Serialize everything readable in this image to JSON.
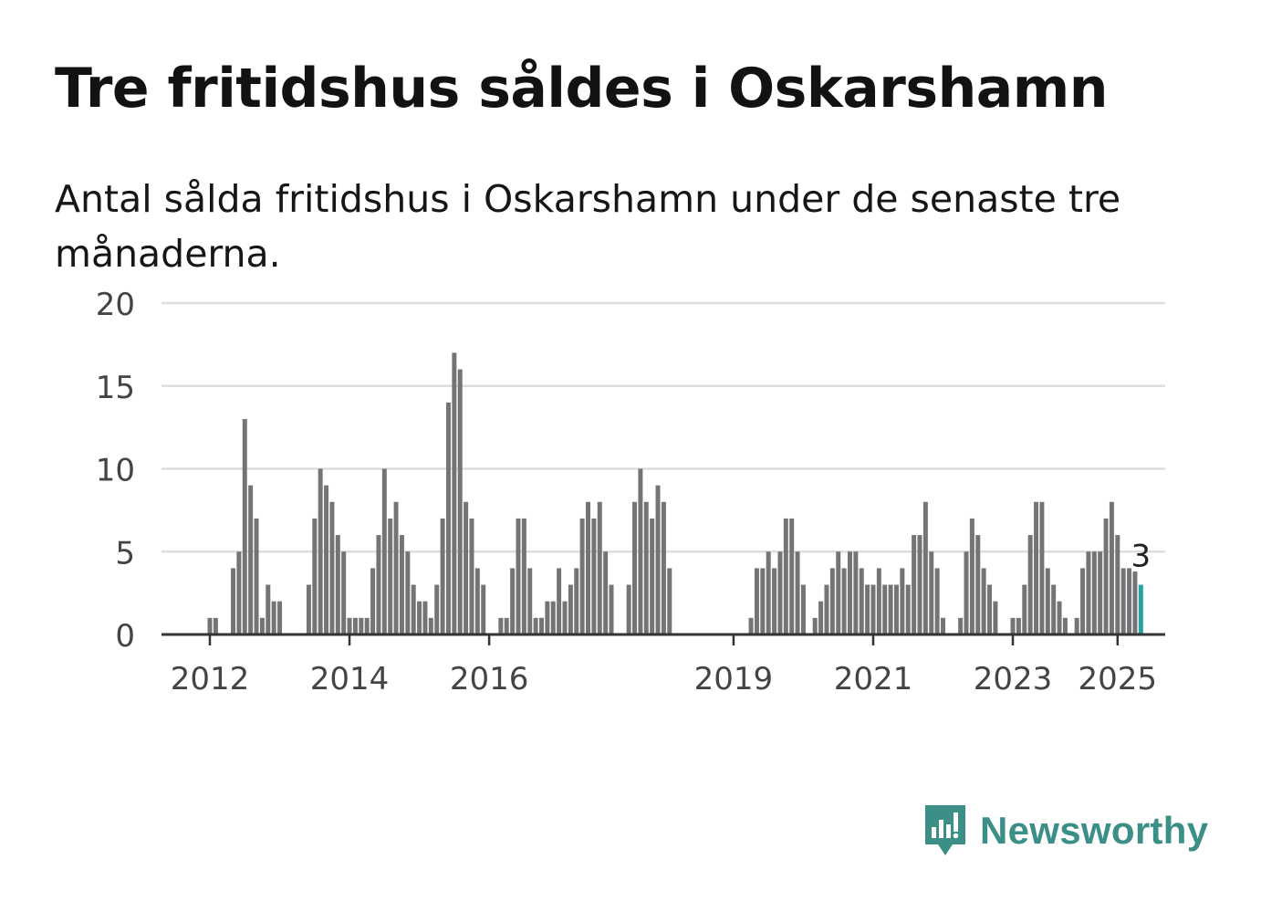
{
  "title": "Tre fritidshus såldes i Oskarshamn",
  "subtitle": "Antal sålda fritidshus i Oskarshamn under de senaste tre månaderna.",
  "brand": {
    "name": "Newsworthy",
    "icon": "newsworthy-logo-icon",
    "color": "#3c8f86"
  },
  "colors": {
    "bar": "#747376",
    "highlight": "#24a3a3",
    "grid": "#dddddd",
    "axis": "#333333"
  },
  "chart_data": {
    "type": "bar",
    "ylim": [
      0,
      20
    ],
    "yticks": [
      "0",
      "5",
      "10",
      "15",
      "20"
    ],
    "xticks": [
      {
        "label": "2012",
        "month": "2012-01"
      },
      {
        "label": "2014",
        "month": "2014-01"
      },
      {
        "label": "2016",
        "month": "2016-01"
      },
      {
        "label": "2019",
        "month": "2019-07"
      },
      {
        "label": "2021",
        "month": "2021-07"
      },
      {
        "label": "2023",
        "month": "2023-07"
      },
      {
        "label": "2025",
        "month": "2025-01"
      }
    ],
    "highlight_label": "3",
    "series": [
      {
        "segments": [
          {
            "start": "2012-01",
            "values": [
              1,
              1,
              0,
              0,
              4,
              5,
              13,
              9,
              7,
              1,
              3,
              2,
              2
            ]
          },
          {
            "start": "2013-06",
            "values": [
              3,
              7,
              10,
              9,
              8,
              6,
              5,
              1,
              1,
              1,
              1,
              4,
              6,
              10,
              7,
              8,
              6,
              5,
              3,
              2,
              2,
              1,
              3,
              7,
              14,
              17,
              16,
              8,
              7,
              4,
              3
            ]
          },
          {
            "start": "2016-03",
            "values": [
              1,
              1,
              4,
              7,
              7,
              4,
              1,
              1,
              2,
              2,
              4,
              2,
              3,
              4,
              7,
              8,
              7,
              8,
              5,
              3
            ]
          },
          {
            "start": "2018-01",
            "values": [
              3,
              8,
              10,
              8,
              7,
              9,
              8,
              4
            ]
          },
          {
            "start": "2019-10",
            "values": [
              1,
              4,
              4,
              5,
              4,
              5,
              7,
              7,
              5,
              3
            ]
          },
          {
            "start": "2020-09",
            "values": [
              1,
              2,
              3,
              4,
              5,
              4,
              5,
              5,
              4,
              3,
              3,
              4,
              3,
              3,
              3,
              4,
              3,
              6,
              6,
              8,
              5,
              4,
              1
            ]
          },
          {
            "start": "2022-10",
            "values": [
              1,
              5,
              7,
              6,
              4,
              3,
              2
            ]
          },
          {
            "start": "2023-07",
            "values": [
              1,
              1,
              3,
              6,
              8,
              8,
              4,
              3,
              2,
              1
            ]
          },
          {
            "start": "2024-06",
            "values": [
              1,
              4,
              5,
              5,
              5,
              7,
              8,
              6,
              4,
              4,
              3.8
            ]
          },
          {
            "start": "2025-05",
            "values": [
              3
            ],
            "highlight": true
          }
        ]
      }
    ]
  }
}
